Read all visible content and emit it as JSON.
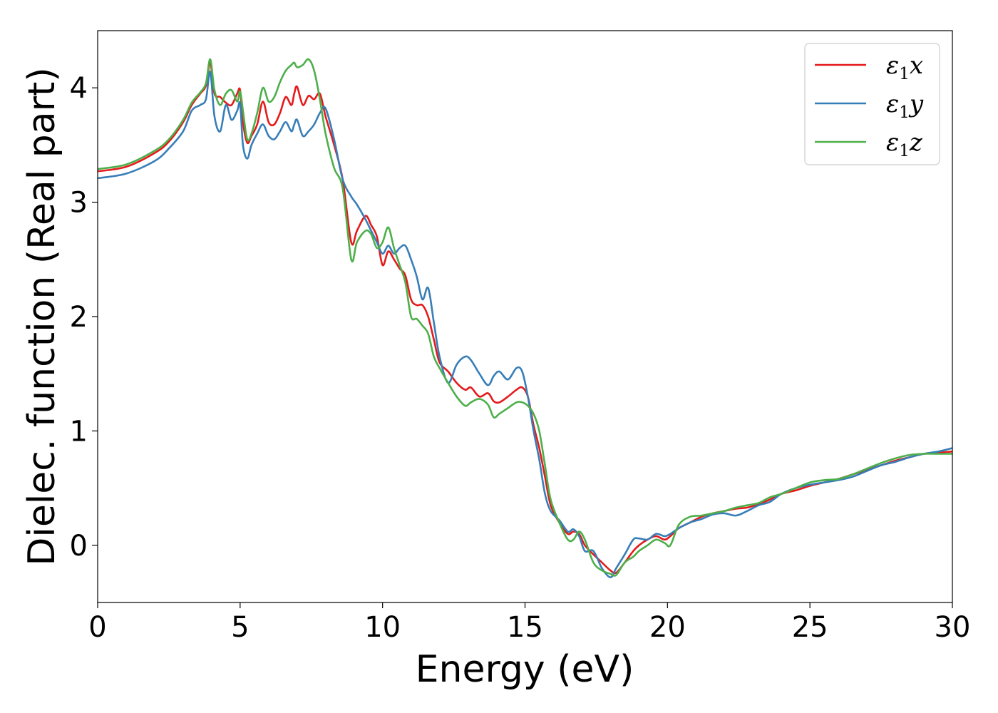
{
  "chart_data": {
    "type": "line",
    "title": "",
    "xlabel": "Energy (eV)",
    "ylabel": "Dielec. function (Real part)",
    "xlim": [
      0,
      30
    ],
    "ylim": [
      -0.5,
      4.5
    ],
    "xticks": [
      0,
      5,
      10,
      15,
      20,
      25,
      30
    ],
    "yticks": [
      0,
      1,
      2,
      3,
      4
    ],
    "grid": false,
    "legend_position": "top-right",
    "series": [
      {
        "name": "ε₁x",
        "legend_symbol": "ε",
        "legend_subscript": "1",
        "legend_axis": "x",
        "color": "#e41a1c",
        "x": [
          0,
          1,
          2,
          2.5,
          3,
          3.3,
          3.6,
          3.8,
          3.95,
          4.1,
          4.3,
          4.5,
          4.7,
          4.9,
          5.0,
          5.1,
          5.25,
          5.4,
          5.6,
          5.8,
          6.0,
          6.2,
          6.4,
          6.6,
          6.8,
          6.9,
          7.0,
          7.2,
          7.4,
          7.6,
          7.8,
          8.0,
          8.3,
          8.6,
          8.9,
          9.1,
          9.4,
          9.6,
          9.8,
          10.0,
          10.2,
          10.4,
          10.6,
          10.8,
          11.0,
          11.2,
          11.4,
          11.6,
          11.8,
          12.0,
          12.3,
          12.6,
          12.9,
          13.1,
          13.4,
          13.7,
          13.9,
          14.1,
          14.4,
          14.7,
          14.9,
          15.1,
          15.3,
          15.5,
          15.7,
          15.9,
          16.2,
          16.5,
          16.7,
          16.9,
          17.1,
          17.4,
          17.7,
          18.0,
          18.2,
          18.5,
          18.8,
          19.0,
          19.3,
          19.6,
          19.9,
          20.1,
          20.4,
          20.8,
          21.2,
          21.6,
          22.0,
          22.4,
          22.8,
          23.2,
          23.6,
          24.0,
          24.5,
          25.0,
          25.5,
          26.0,
          26.5,
          27.0,
          27.5,
          28.0,
          28.5,
          29.0,
          29.5,
          30.0
        ],
        "y": [
          3.27,
          3.31,
          3.43,
          3.53,
          3.7,
          3.85,
          3.95,
          4.02,
          4.22,
          3.95,
          3.92,
          3.87,
          3.85,
          3.95,
          3.98,
          3.7,
          3.52,
          3.58,
          3.68,
          3.88,
          3.7,
          3.68,
          3.78,
          3.92,
          3.85,
          3.95,
          4.01,
          3.85,
          3.93,
          3.9,
          3.95,
          3.75,
          3.5,
          3.2,
          2.65,
          2.75,
          2.88,
          2.8,
          2.7,
          2.45,
          2.57,
          2.5,
          2.42,
          2.36,
          2.15,
          2.1,
          2.1,
          2.0,
          1.8,
          1.6,
          1.52,
          1.42,
          1.36,
          1.38,
          1.3,
          1.33,
          1.26,
          1.25,
          1.3,
          1.36,
          1.38,
          1.3,
          1.05,
          0.85,
          0.6,
          0.35,
          0.2,
          0.1,
          0.12,
          0.1,
          0.0,
          -0.08,
          -0.15,
          -0.22,
          -0.24,
          -0.15,
          -0.05,
          0.0,
          0.05,
          0.08,
          0.05,
          0.08,
          0.15,
          0.2,
          0.25,
          0.28,
          0.3,
          0.32,
          0.33,
          0.36,
          0.4,
          0.45,
          0.48,
          0.52,
          0.55,
          0.58,
          0.62,
          0.66,
          0.7,
          0.74,
          0.77,
          0.8,
          0.81,
          0.82
        ]
      },
      {
        "name": "ε₁y",
        "legend_symbol": "ε",
        "legend_subscript": "1",
        "legend_axis": "y",
        "color": "#377eb8",
        "x": [
          0,
          1,
          2,
          2.5,
          3,
          3.3,
          3.6,
          3.8,
          3.95,
          4.1,
          4.3,
          4.5,
          4.7,
          4.9,
          5.0,
          5.1,
          5.25,
          5.4,
          5.6,
          5.8,
          6.0,
          6.2,
          6.4,
          6.6,
          6.8,
          6.9,
          7.0,
          7.2,
          7.4,
          7.6,
          7.8,
          8.0,
          8.3,
          8.6,
          8.9,
          9.1,
          9.4,
          9.6,
          9.8,
          10.0,
          10.2,
          10.4,
          10.6,
          10.8,
          11.0,
          11.2,
          11.4,
          11.6,
          11.8,
          12.0,
          12.3,
          12.6,
          12.9,
          13.1,
          13.4,
          13.7,
          13.9,
          14.1,
          14.4,
          14.7,
          14.9,
          15.1,
          15.3,
          15.5,
          15.7,
          15.9,
          16.2,
          16.5,
          16.7,
          16.9,
          17.1,
          17.4,
          17.7,
          18.0,
          18.2,
          18.5,
          18.8,
          19.0,
          19.3,
          19.6,
          19.9,
          20.1,
          20.4,
          20.8,
          21.2,
          21.6,
          22.0,
          22.4,
          22.8,
          23.2,
          23.6,
          24.0,
          24.5,
          25.0,
          25.5,
          26.0,
          26.5,
          27.0,
          27.5,
          28.0,
          28.5,
          29.0,
          29.5,
          30.0
        ],
        "y": [
          3.21,
          3.25,
          3.36,
          3.47,
          3.62,
          3.8,
          3.85,
          3.9,
          4.14,
          3.75,
          3.62,
          3.85,
          3.72,
          3.8,
          3.86,
          3.5,
          3.38,
          3.5,
          3.6,
          3.68,
          3.58,
          3.55,
          3.62,
          3.7,
          3.62,
          3.68,
          3.72,
          3.58,
          3.62,
          3.68,
          3.78,
          3.82,
          3.55,
          3.2,
          3.05,
          2.98,
          2.85,
          2.75,
          2.65,
          2.55,
          2.62,
          2.55,
          2.6,
          2.62,
          2.5,
          2.35,
          2.15,
          2.25,
          1.95,
          1.65,
          1.42,
          1.58,
          1.65,
          1.62,
          1.5,
          1.4,
          1.48,
          1.52,
          1.45,
          1.55,
          1.52,
          1.3,
          1.0,
          0.75,
          0.45,
          0.3,
          0.22,
          0.12,
          0.14,
          0.08,
          -0.05,
          -0.05,
          -0.2,
          -0.28,
          -0.2,
          -0.08,
          0.05,
          0.06,
          0.05,
          0.1,
          0.08,
          0.1,
          0.15,
          0.2,
          0.23,
          0.27,
          0.28,
          0.26,
          0.3,
          0.35,
          0.38,
          0.45,
          0.5,
          0.53,
          0.55,
          0.57,
          0.6,
          0.65,
          0.7,
          0.73,
          0.77,
          0.8,
          0.82,
          0.85
        ]
      },
      {
        "name": "ε₁z",
        "legend_symbol": "ε",
        "legend_subscript": "1",
        "legend_axis": "z",
        "color": "#4daf4a",
        "x": [
          0,
          1,
          2,
          2.5,
          3,
          3.3,
          3.6,
          3.8,
          3.95,
          4.1,
          4.3,
          4.5,
          4.7,
          4.9,
          5.0,
          5.1,
          5.25,
          5.4,
          5.6,
          5.8,
          6.0,
          6.2,
          6.4,
          6.6,
          6.8,
          6.9,
          7.0,
          7.2,
          7.4,
          7.6,
          7.8,
          8.0,
          8.3,
          8.6,
          8.9,
          9.1,
          9.4,
          9.6,
          9.8,
          10.0,
          10.2,
          10.4,
          10.6,
          10.8,
          11.0,
          11.2,
          11.4,
          11.6,
          11.8,
          12.0,
          12.3,
          12.6,
          12.9,
          13.1,
          13.4,
          13.7,
          13.9,
          14.1,
          14.4,
          14.7,
          14.9,
          15.1,
          15.3,
          15.5,
          15.7,
          15.9,
          16.2,
          16.5,
          16.7,
          16.9,
          17.1,
          17.4,
          17.7,
          18.0,
          18.2,
          18.5,
          18.8,
          19.0,
          19.3,
          19.6,
          19.9,
          20.1,
          20.4,
          20.8,
          21.2,
          21.6,
          22.0,
          22.4,
          22.8,
          23.2,
          23.6,
          24.0,
          24.5,
          25.0,
          25.5,
          26.0,
          26.5,
          27.0,
          27.5,
          28.0,
          28.5,
          29.0,
          29.5,
          30.0
        ],
        "y": [
          3.29,
          3.33,
          3.45,
          3.55,
          3.72,
          3.87,
          3.96,
          4.04,
          4.25,
          3.98,
          3.85,
          3.95,
          3.98,
          3.88,
          3.97,
          3.8,
          3.55,
          3.6,
          3.78,
          4.0,
          3.88,
          3.92,
          4.05,
          4.15,
          4.2,
          4.22,
          4.18,
          4.2,
          4.25,
          4.15,
          3.9,
          3.6,
          3.3,
          3.12,
          2.5,
          2.65,
          2.75,
          2.72,
          2.6,
          2.65,
          2.78,
          2.6,
          2.45,
          2.3,
          2.0,
          1.98,
          1.92,
          1.85,
          1.65,
          1.55,
          1.42,
          1.3,
          1.22,
          1.25,
          1.28,
          1.23,
          1.12,
          1.15,
          1.2,
          1.25,
          1.25,
          1.22,
          1.15,
          1.0,
          0.7,
          0.4,
          0.2,
          0.05,
          0.05,
          0.12,
          0.05,
          -0.15,
          -0.22,
          -0.25,
          -0.26,
          -0.15,
          -0.1,
          -0.05,
          0.0,
          0.05,
          0.02,
          0.0,
          0.18,
          0.25,
          0.26,
          0.28,
          0.3,
          0.33,
          0.35,
          0.37,
          0.42,
          0.45,
          0.5,
          0.55,
          0.57,
          0.58,
          0.62,
          0.67,
          0.72,
          0.76,
          0.79,
          0.8,
          0.8,
          0.8
        ]
      }
    ]
  }
}
